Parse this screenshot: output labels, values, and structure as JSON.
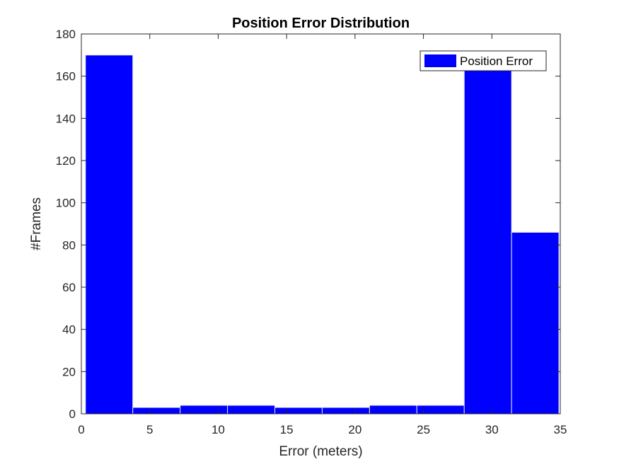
{
  "chart_data": {
    "type": "bar",
    "title": "Position Error Distribution",
    "xlabel": "Error (meters)",
    "ylabel": "#Frames",
    "xlim": [
      0,
      35
    ],
    "ylim": [
      0,
      180
    ],
    "xticks": [
      0,
      5,
      10,
      15,
      20,
      25,
      30,
      35
    ],
    "yticks": [
      0,
      20,
      40,
      60,
      80,
      100,
      120,
      140,
      160,
      180
    ],
    "bin_edges": [
      0.3,
      3.76,
      7.22,
      10.68,
      14.14,
      17.6,
      21.06,
      24.52,
      27.98,
      31.44,
      34.9
    ],
    "series": [
      {
        "name": "Position Error",
        "values": [
          170,
          3,
          4,
          4,
          3,
          3,
          4,
          4,
          166,
          86
        ]
      }
    ],
    "grid": false,
    "legend_position": "top-right",
    "bar_color": "#0000ff",
    "bar_edge_color": "#e6e6e6"
  }
}
